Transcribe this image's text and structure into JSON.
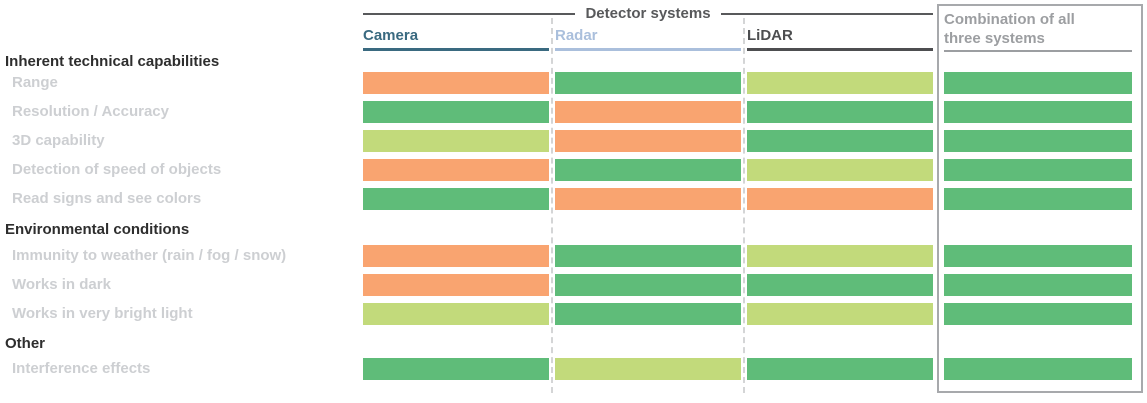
{
  "chart_data": {
    "type": "heatmap",
    "title": "Detector systems",
    "legend_position": "none",
    "columns": [
      {
        "label": "Camera",
        "color": "#3A6A80"
      },
      {
        "label": "Radar",
        "color": "#AABFDC"
      },
      {
        "label": "LiDAR",
        "color": "#4D4E50"
      },
      {
        "label": "Combination of all three systems",
        "color": "#9C9EA1"
      }
    ],
    "rating_colors": {
      "good": "#5FBC79",
      "medium": "#C2DA7B",
      "poor": "#F9A470"
    },
    "rating_order_per_row": [
      "camera",
      "radar",
      "lidar",
      "combination"
    ],
    "sections": [
      {
        "title": "Inherent technical capabilities",
        "rows": [
          {
            "label": "Range",
            "ratings": [
              "poor",
              "good",
              "medium",
              "good"
            ]
          },
          {
            "label": "Resolution / Accuracy",
            "ratings": [
              "good",
              "poor",
              "good",
              "good"
            ]
          },
          {
            "label": "3D capability",
            "ratings": [
              "medium",
              "poor",
              "good",
              "good"
            ]
          },
          {
            "label": "Detection of speed of objects",
            "ratings": [
              "poor",
              "good",
              "medium",
              "good"
            ]
          },
          {
            "label": "Read signs and see colors",
            "ratings": [
              "good",
              "poor",
              "poor",
              "good"
            ]
          }
        ]
      },
      {
        "title": "Environmental conditions",
        "rows": [
          {
            "label": "Immunity to weather (rain / fog / snow)",
            "ratings": [
              "poor",
              "good",
              "medium",
              "good"
            ]
          },
          {
            "label": "Works in dark",
            "ratings": [
              "poor",
              "good",
              "good",
              "good"
            ]
          },
          {
            "label": "Works in very bright light",
            "ratings": [
              "medium",
              "good",
              "medium",
              "good"
            ]
          }
        ]
      },
      {
        "title": "Other",
        "rows": [
          {
            "label": "Interference effects",
            "ratings": [
              "good",
              "medium",
              "good",
              "good"
            ]
          }
        ]
      }
    ]
  }
}
